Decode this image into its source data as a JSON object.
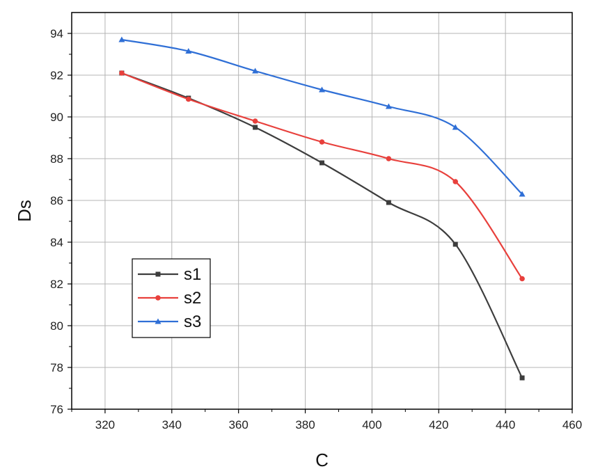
{
  "chart_data": {
    "type": "line",
    "title": "",
    "xlabel": "C",
    "ylabel": "Ds",
    "xlim": [
      310,
      460
    ],
    "ylim": [
      76,
      95
    ],
    "x_ticks": [
      320,
      340,
      360,
      380,
      400,
      420,
      440,
      460
    ],
    "y_ticks": [
      76,
      78,
      80,
      82,
      84,
      86,
      88,
      90,
      92,
      94
    ],
    "grid": true,
    "legend": {
      "position": "bottom-left",
      "entries": [
        "s1",
        "s2",
        "s3"
      ]
    },
    "x": [
      325,
      345,
      365,
      385,
      405,
      425,
      445
    ],
    "series": [
      {
        "name": "s1",
        "color": "#3d3d3d",
        "marker": "square",
        "values": [
          92.1,
          90.9,
          89.5,
          87.8,
          85.9,
          83.9,
          77.5
        ]
      },
      {
        "name": "s2",
        "color": "#e8403c",
        "marker": "circle",
        "values": [
          92.1,
          90.85,
          89.8,
          88.8,
          88.0,
          86.9,
          82.25
        ]
      },
      {
        "name": "s3",
        "color": "#2f6fd6",
        "marker": "triangle",
        "values": [
          93.7,
          93.15,
          92.2,
          91.3,
          90.5,
          89.5,
          86.3
        ]
      }
    ]
  }
}
